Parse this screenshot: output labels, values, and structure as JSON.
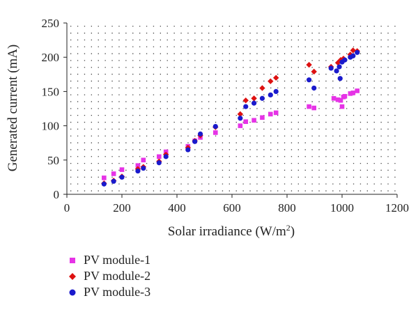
{
  "chart_data": {
    "type": "scatter",
    "xlabel": "Solar irradiance (W/m",
    "xlabel_sup": "2",
    "xlabel_end": ")",
    "ylabel": "Generated current (mA)",
    "xlim": [
      0,
      1200
    ],
    "ylim": [
      0,
      250
    ],
    "xticks": [
      "0",
      "200",
      "400",
      "600",
      "800",
      "1000",
      "1200"
    ],
    "yticks": [
      "0",
      "50",
      "100",
      "150",
      "200",
      "250"
    ],
    "grid": "dotted",
    "legend_position": "below",
    "series": [
      {
        "name": "PV module-1",
        "color": "#e633e6",
        "marker": "square",
        "points": [
          [
            135,
            24
          ],
          [
            170,
            30
          ],
          [
            200,
            36
          ],
          [
            258,
            42
          ],
          [
            278,
            50
          ],
          [
            335,
            55
          ],
          [
            360,
            62
          ],
          [
            440,
            70
          ],
          [
            465,
            78
          ],
          [
            485,
            83
          ],
          [
            540,
            90
          ],
          [
            630,
            100
          ],
          [
            650,
            106
          ],
          [
            680,
            108
          ],
          [
            710,
            112
          ],
          [
            740,
            117
          ],
          [
            760,
            119
          ],
          [
            880,
            128
          ],
          [
            898,
            126
          ],
          [
            970,
            140
          ],
          [
            985,
            138
          ],
          [
            995,
            137
          ],
          [
            1000,
            128
          ],
          [
            1005,
            142
          ],
          [
            1010,
            143
          ],
          [
            1030,
            147
          ],
          [
            1040,
            148
          ],
          [
            1055,
            151
          ]
        ]
      },
      {
        "name": "PV module-2",
        "color": "#dd1111",
        "marker": "diamond",
        "points": [
          [
            135,
            16
          ],
          [
            170,
            20
          ],
          [
            200,
            26
          ],
          [
            258,
            37
          ],
          [
            278,
            40
          ],
          [
            335,
            48
          ],
          [
            360,
            58
          ],
          [
            440,
            68
          ],
          [
            465,
            78
          ],
          [
            485,
            86
          ],
          [
            540,
            98
          ],
          [
            630,
            117
          ],
          [
            650,
            137
          ],
          [
            680,
            140
          ],
          [
            710,
            155
          ],
          [
            740,
            165
          ],
          [
            760,
            170
          ],
          [
            880,
            189
          ],
          [
            898,
            179
          ],
          [
            960,
            186
          ],
          [
            985,
            192
          ],
          [
            995,
            196
          ],
          [
            1005,
            198
          ],
          [
            1030,
            204
          ],
          [
            1040,
            210
          ],
          [
            1055,
            209
          ]
        ]
      },
      {
        "name": "PV module-3",
        "color": "#1a1acc",
        "marker": "circle",
        "points": [
          [
            135,
            15
          ],
          [
            170,
            19
          ],
          [
            200,
            25
          ],
          [
            258,
            34
          ],
          [
            278,
            38
          ],
          [
            335,
            46
          ],
          [
            360,
            55
          ],
          [
            440,
            65
          ],
          [
            465,
            77
          ],
          [
            485,
            88
          ],
          [
            540,
            99
          ],
          [
            630,
            111
          ],
          [
            650,
            128
          ],
          [
            680,
            133
          ],
          [
            710,
            140
          ],
          [
            740,
            145
          ],
          [
            760,
            150
          ],
          [
            880,
            167
          ],
          [
            898,
            155
          ],
          [
            960,
            184
          ],
          [
            980,
            180
          ],
          [
            990,
            186
          ],
          [
            993,
            169
          ],
          [
            1000,
            193
          ],
          [
            1010,
            196
          ],
          [
            1030,
            200
          ],
          [
            1040,
            202
          ],
          [
            1055,
            207
          ]
        ]
      }
    ]
  }
}
